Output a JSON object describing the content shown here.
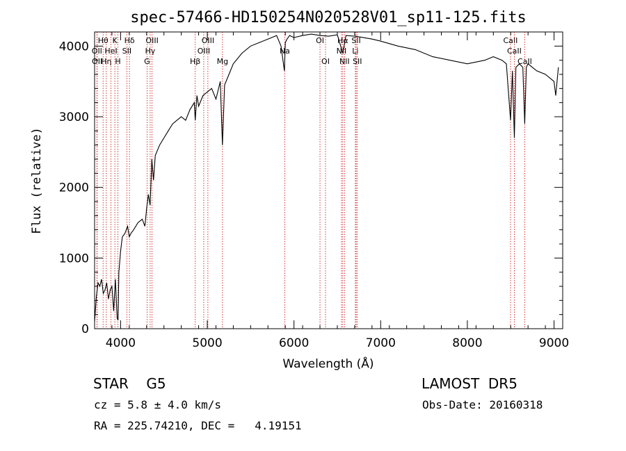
{
  "chart_data": {
    "type": "line",
    "title": "spec-57466-HD150254N020528V01_sp11-125.fits",
    "xlabel": "Wavelength (Å)",
    "ylabel": "Flux (relative)",
    "xlim": [
      3700,
      9100
    ],
    "ylim": [
      0,
      4200
    ],
    "x_ticks": [
      4000,
      5000,
      6000,
      7000,
      8000,
      9000
    ],
    "y_ticks": [
      0,
      1000,
      2000,
      3000,
      4000
    ],
    "grid": false,
    "line_color": "#000000",
    "marker_color": "#cc0000",
    "series": [
      {
        "x": [
          3700,
          3720,
          3740,
          3760,
          3780,
          3800,
          3820,
          3840,
          3860,
          3880,
          3900,
          3920,
          3940,
          3960,
          3970,
          3980,
          4000,
          4020,
          4050,
          4080,
          4100,
          4120,
          4150,
          4200,
          4250,
          4280,
          4300,
          4320,
          4340,
          4360,
          4380,
          4400,
          4450,
          4500,
          4550,
          4600,
          4650,
          4700,
          4750,
          4800,
          4850,
          4861,
          4880,
          4900,
          4950,
          5000,
          5050,
          5100,
          5150,
          5175,
          5200,
          5250,
          5300,
          5400,
          5500,
          5600,
          5700,
          5800,
          5850,
          5890,
          5900,
          5920,
          5950,
          6000,
          6100,
          6200,
          6300,
          6400,
          6500,
          6563,
          6600,
          6700,
          6800,
          6900,
          7000,
          7200,
          7400,
          7600,
          7800,
          8000,
          8200,
          8300,
          8400,
          8450,
          8498,
          8520,
          8542,
          8560,
          8600,
          8640,
          8662,
          8680,
          8700,
          8800,
          8900,
          8950,
          9000,
          9020,
          9050
        ],
        "y": [
          100,
          450,
          650,
          600,
          700,
          500,
          550,
          650,
          420,
          550,
          600,
          250,
          700,
          150,
          120,
          800,
          1100,
          1300,
          1350,
          1450,
          1300,
          1350,
          1400,
          1500,
          1550,
          1450,
          1700,
          1900,
          1750,
          2400,
          2100,
          2450,
          2600,
          2700,
          2800,
          2900,
          2950,
          3000,
          2950,
          3100,
          3200,
          2950,
          3300,
          3150,
          3300,
          3350,
          3400,
          3250,
          3500,
          2600,
          3450,
          3600,
          3750,
          3900,
          4000,
          4050,
          4100,
          4150,
          4000,
          3650,
          4050,
          4100,
          4150,
          4120,
          4150,
          4170,
          4150,
          4140,
          4160,
          3900,
          4150,
          4140,
          4120,
          4100,
          4070,
          4000,
          3950,
          3850,
          3800,
          3750,
          3800,
          3850,
          3800,
          3750,
          2950,
          3650,
          2700,
          3700,
          3750,
          3700,
          2900,
          3700,
          3750,
          3650,
          3600,
          3550,
          3500,
          3300,
          3700
        ]
      }
    ],
    "line_markers": [
      {
        "label": "OII",
        "x": 3727,
        "row": 1
      },
      {
        "label": "OII",
        "x": 3729,
        "row": 2
      },
      {
        "label": "Hθ",
        "x": 3798,
        "row": 0
      },
      {
        "label": "Hη",
        "x": 3835,
        "row": 2
      },
      {
        "label": "HeI",
        "x": 3889,
        "row": 1
      },
      {
        "label": "K",
        "x": 3934,
        "row": 0
      },
      {
        "label": "H",
        "x": 3969,
        "row": 2
      },
      {
        "label": "Hδ",
        "x": 4102,
        "row": 0
      },
      {
        "label": "SII",
        "x": 4072,
        "row": 1
      },
      {
        "label": "G",
        "x": 4305,
        "row": 2
      },
      {
        "label": "Hγ",
        "x": 4341,
        "row": 1
      },
      {
        "label": "OIII",
        "x": 4363,
        "row": 0
      },
      {
        "label": "Hβ",
        "x": 4861,
        "row": 2
      },
      {
        "label": "OIII",
        "x": 4959,
        "row": 1
      },
      {
        "label": "OIII",
        "x": 5007,
        "row": 0
      },
      {
        "label": "Mg",
        "x": 5175,
        "row": 2
      },
      {
        "label": "Na",
        "x": 5894,
        "row": 1
      },
      {
        "label": "OI",
        "x": 6300,
        "row": 0
      },
      {
        "label": "OI",
        "x": 6364,
        "row": 2
      },
      {
        "label": "NII",
        "x": 6548,
        "row": 1
      },
      {
        "label": "Hα",
        "x": 6563,
        "row": 0
      },
      {
        "label": "NII",
        "x": 6583,
        "row": 2
      },
      {
        "label": "Li",
        "x": 6708,
        "row": 1
      },
      {
        "label": "SII",
        "x": 6717,
        "row": 0
      },
      {
        "label": "SII",
        "x": 6731,
        "row": 2
      },
      {
        "label": "CaII",
        "x": 8498,
        "row": 0
      },
      {
        "label": "CaII",
        "x": 8542,
        "row": 1
      },
      {
        "label": "CaII",
        "x": 8662,
        "row": 2
      }
    ]
  },
  "footer": {
    "class_label": "STAR    G5",
    "survey": "LAMOST  DR5",
    "cz": "cz = 5.8 ± 4.0 km/s",
    "obs_date": "Obs-Date: 20160318",
    "radec": "RA = 225.74210, DEC =   4.19151"
  }
}
